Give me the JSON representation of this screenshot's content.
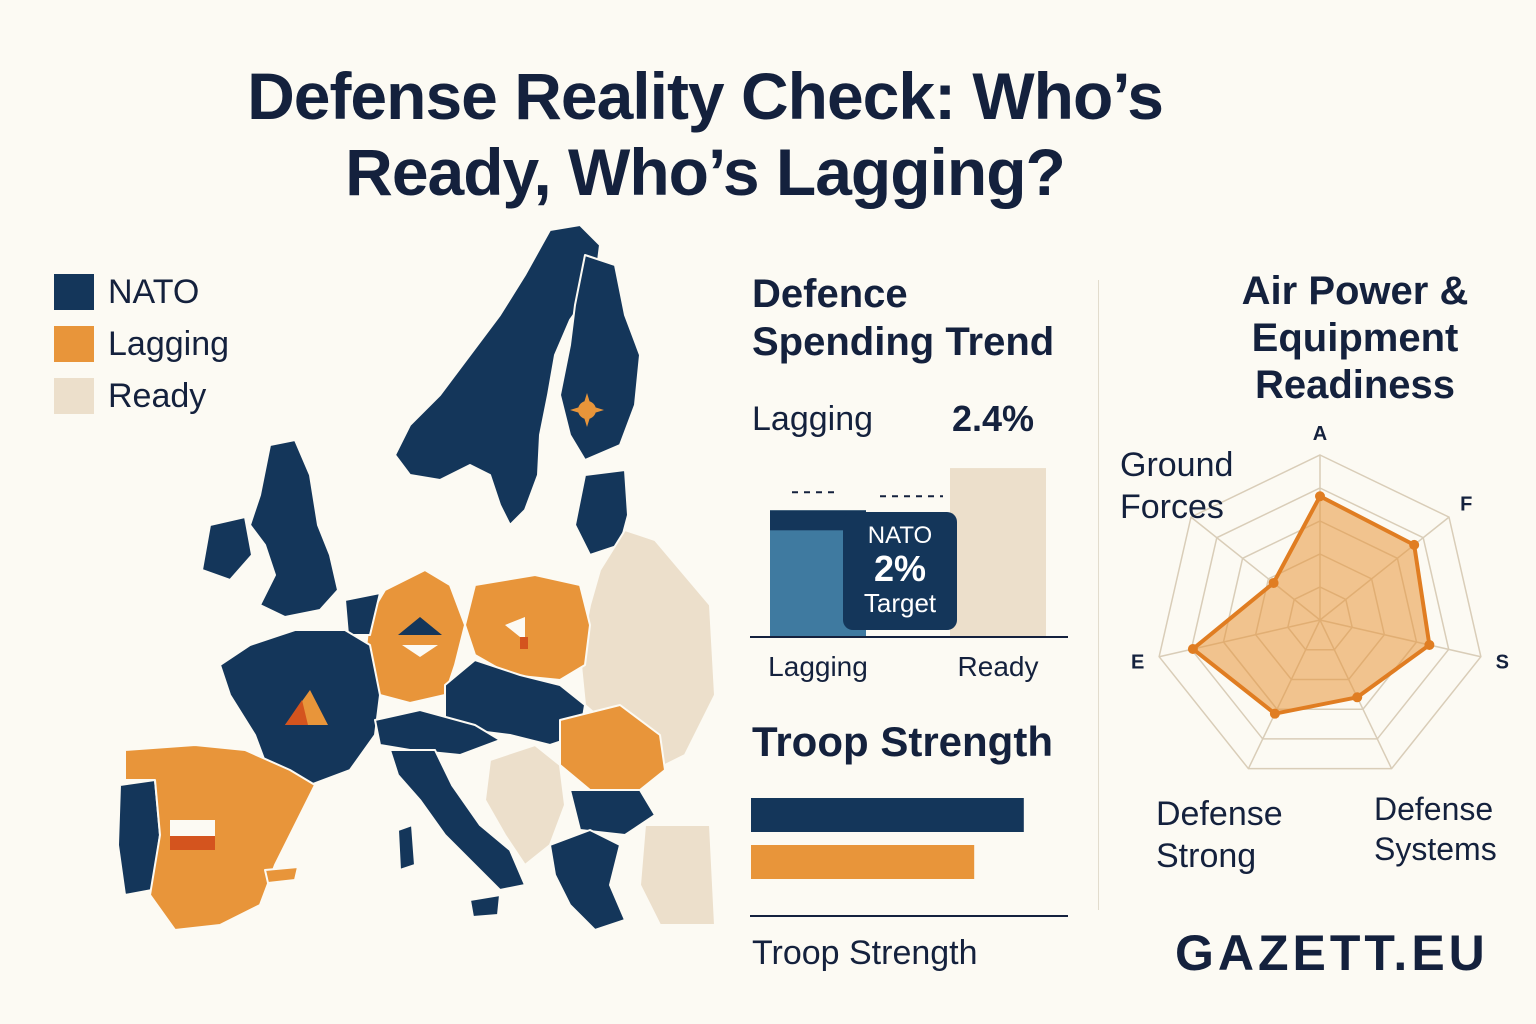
{
  "title_line1": "Defense Reality Check: Who’s",
  "title_line2": "Ready, Who’s Lagging?",
  "colors": {
    "nato": "#14365a",
    "lagging": "#e8953a",
    "ready": "#ecdfcb",
    "spend_bar": "#3f7aa0",
    "ink": "#14213d"
  },
  "legend": [
    {
      "label": "NATO",
      "color": "#14365a"
    },
    {
      "label": "Lagging",
      "color": "#e8953a"
    },
    {
      "label": "Ready",
      "color": "#ecdfcb"
    }
  ],
  "spending": {
    "title_line1": "Defence",
    "title_line2": "Spending Trend",
    "top_left_label": "Lagging",
    "top_right_value": "2.4%",
    "badge_line1": "NATO",
    "badge_line2": "2%",
    "badge_line3": "Target"
  },
  "troop": {
    "title": "Troop Strength",
    "axis_label": "Troop Strength"
  },
  "air": {
    "title_line1": "Air Power &",
    "title_line2": "Equipment",
    "title_line3": "Readiness",
    "label_ground_1": "Ground",
    "label_ground_2": "Forces",
    "label_defstrong_1": "Defense",
    "label_defstrong_2": "Strong",
    "label_defsys_1": "Defense",
    "label_defsys_2": "Systems"
  },
  "brand": "GAZETT.EU",
  "chart_data": [
    {
      "type": "bar",
      "categories": [
        "Lagging",
        "Ready"
      ],
      "values": [
        1.8,
        2.4
      ],
      "reference_line": 2.0,
      "ylim": [
        0,
        2.6
      ]
    },
    {
      "type": "bar",
      "orientation": "horizontal",
      "categories": [
        "NATO",
        "Lagging"
      ],
      "values": [
        88,
        72
      ],
      "xlim": [
        0,
        100
      ],
      "xlabel": "Troop Strength"
    },
    {
      "type": "radar",
      "axes": [
        "A",
        "F",
        "S",
        "",
        "",
        "E",
        ""
      ],
      "range": [
        0,
        10
      ],
      "series": [
        {
          "values": [
            7.5,
            7.3,
            6.8,
            5.2,
            6.3,
            7.9,
            3.6
          ]
        }
      ]
    }
  ]
}
